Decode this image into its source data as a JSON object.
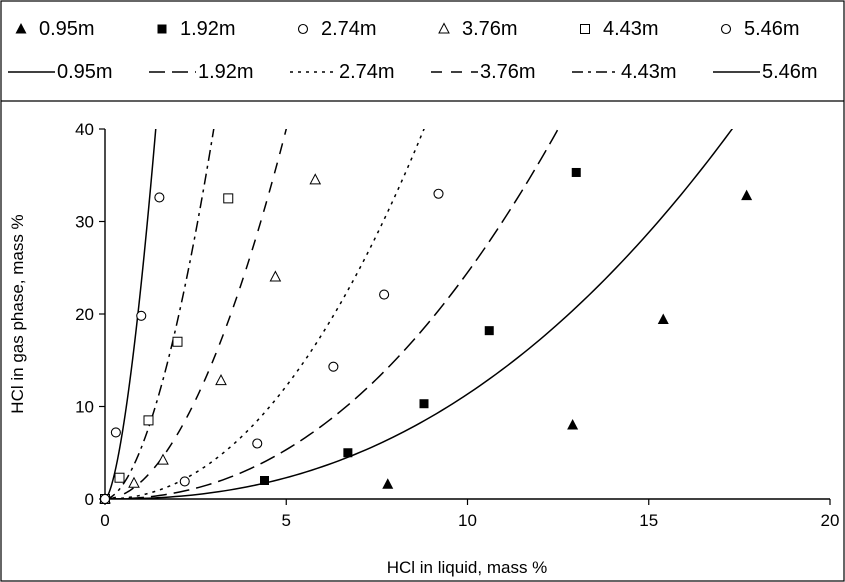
{
  "chart_data": {
    "type": "scatter",
    "xlabel": "HCl in liquid, mass %",
    "ylabel": "HCl in gas phase, mass %",
    "xlim": [
      0,
      20
    ],
    "ylim": [
      0,
      40
    ],
    "x_ticks": [
      "0",
      "5",
      "10",
      "15",
      "20"
    ],
    "y_ticks": [
      "0",
      "10",
      "20",
      "30",
      "40"
    ],
    "legend_position": "top",
    "marker_series": [
      {
        "name": "0.95m",
        "marker": "filled-triangle",
        "points": [
          [
            0,
            0
          ],
          [
            7.8,
            1.6
          ],
          [
            12.9,
            8.0
          ],
          [
            15.4,
            19.4
          ],
          [
            17.7,
            32.8
          ]
        ]
      },
      {
        "name": "1.92m",
        "marker": "filled-square",
        "points": [
          [
            0,
            0
          ],
          [
            4.4,
            2.0
          ],
          [
            6.7,
            5.0
          ],
          [
            8.8,
            10.3
          ],
          [
            10.6,
            18.2
          ],
          [
            13.0,
            35.3
          ]
        ]
      },
      {
        "name": "2.74m",
        "marker": "open-circle",
        "points": [
          [
            0,
            0
          ],
          [
            2.2,
            1.9
          ],
          [
            4.2,
            6.0
          ],
          [
            6.3,
            14.3
          ],
          [
            7.7,
            22.1
          ],
          [
            9.2,
            33.0
          ]
        ]
      },
      {
        "name": "3.76m",
        "marker": "open-triangle",
        "points": [
          [
            0,
            0
          ],
          [
            0.8,
            1.7
          ],
          [
            1.6,
            4.2
          ],
          [
            3.2,
            12.8
          ],
          [
            4.7,
            24.0
          ],
          [
            5.8,
            34.5
          ]
        ]
      },
      {
        "name": "4.43m",
        "marker": "open-square",
        "points": [
          [
            0,
            0
          ],
          [
            0.4,
            2.3
          ],
          [
            1.2,
            8.5
          ],
          [
            2.0,
            17.0
          ],
          [
            3.4,
            32.5
          ]
        ]
      },
      {
        "name": "5.46m",
        "marker": "open-circle",
        "points": [
          [
            0,
            0
          ],
          [
            0.3,
            7.2
          ],
          [
            1.0,
            19.8
          ],
          [
            1.5,
            32.6
          ]
        ]
      }
    ],
    "curve_series": [
      {
        "name": "0.95m",
        "dash": "solid",
        "x_at_top": 17.3,
        "exponent": 2.3
      },
      {
        "name": "1.92m",
        "dash": "long-dash",
        "x_at_top": 12.5,
        "exponent": 2.2
      },
      {
        "name": "2.74m",
        "dash": "dotted",
        "x_at_top": 8.8,
        "exponent": 2.1
      },
      {
        "name": "3.76m",
        "dash": "dash",
        "x_at_top": 5.0,
        "exponent": 1.9
      },
      {
        "name": "4.43m",
        "dash": "dash-dot",
        "x_at_top": 3.0,
        "exponent": 1.8
      },
      {
        "name": "5.46m",
        "dash": "solid",
        "x_at_top": 1.4,
        "exponent": 1.6
      }
    ]
  }
}
